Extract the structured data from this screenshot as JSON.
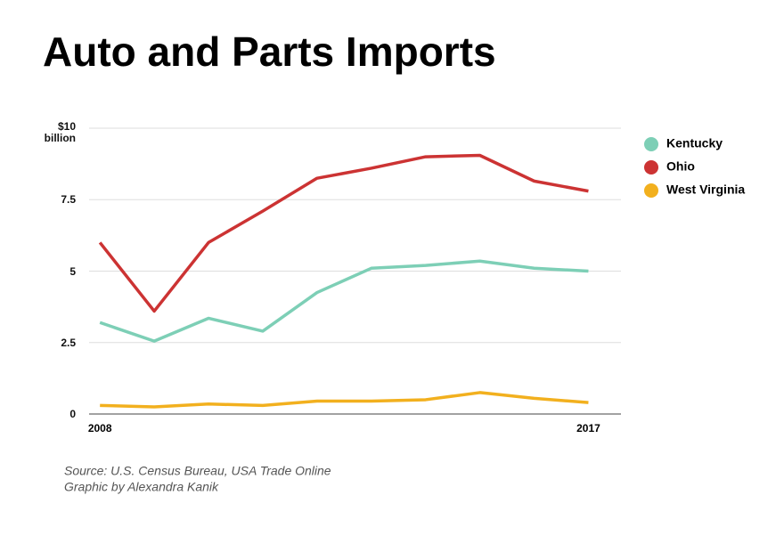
{
  "chart_data": {
    "type": "line",
    "title": "Auto and Parts Imports",
    "x": [
      2008,
      2009,
      2010,
      2011,
      2012,
      2013,
      2014,
      2015,
      2016,
      2017
    ],
    "series": [
      {
        "name": "Kentucky",
        "color": "#7dcfb6",
        "values": [
          3.2,
          2.55,
          3.35,
          2.9,
          4.25,
          5.1,
          5.2,
          5.35,
          5.1,
          5.0
        ]
      },
      {
        "name": "Ohio",
        "color": "#cc3333",
        "values": [
          6.0,
          3.6,
          6.0,
          7.1,
          8.25,
          8.6,
          9.0,
          9.05,
          8.15,
          7.8
        ]
      },
      {
        "name": "West Virginia",
        "color": "#f2b01e",
        "values": [
          0.3,
          0.25,
          0.35,
          0.3,
          0.45,
          0.45,
          0.5,
          0.75,
          0.55,
          0.4
        ]
      }
    ],
    "xlim": [
      2007.8,
      2017.6
    ],
    "xticks": [
      2008,
      2017
    ],
    "ylim": [
      0,
      10
    ],
    "yticks": [
      0,
      2.5,
      5,
      7.5,
      {
        "value": 10,
        "label": "$10 billion"
      }
    ],
    "grid": true,
    "legend": "right",
    "source": "Source: U.S. Census Bureau, USA Trade Online",
    "credit": "Graphic by Alexandra Kanik"
  }
}
